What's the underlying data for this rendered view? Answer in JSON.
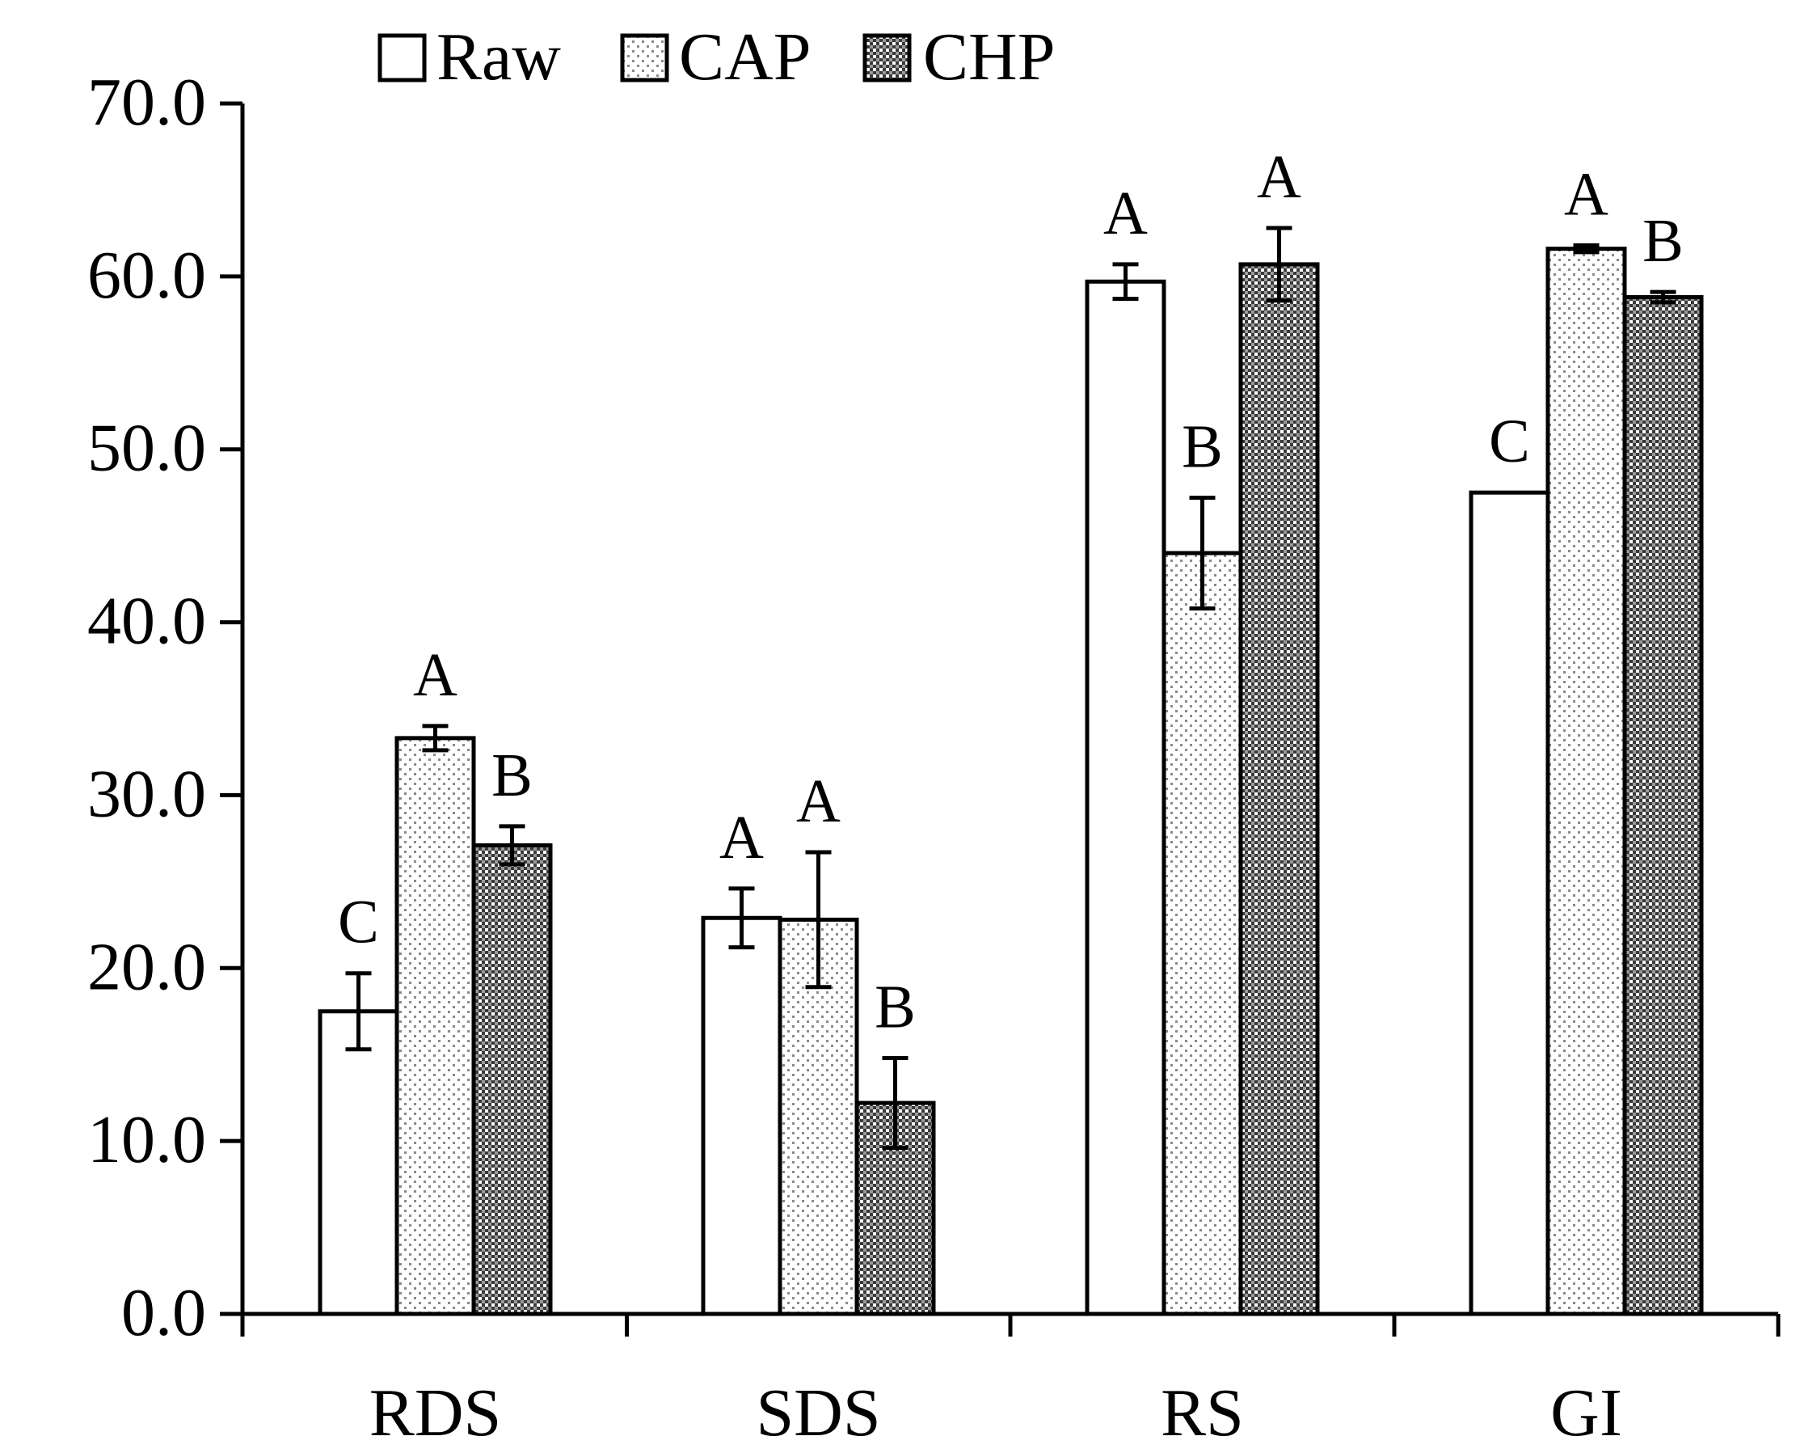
{
  "chart_data": {
    "type": "bar",
    "title": "",
    "xlabel": "",
    "ylabel": "",
    "ylim": [
      0,
      70
    ],
    "yticks": [
      "0.0",
      "10.0",
      "20.0",
      "30.0",
      "40.0",
      "50.0",
      "60.0",
      "70.0"
    ],
    "grid": false,
    "legend_position": "top-left",
    "categories": [
      "RDS",
      "SDS",
      "RS",
      "GI"
    ],
    "series": [
      {
        "name": "Raw",
        "pattern": "white",
        "values": [
          17.5,
          22.9,
          59.7,
          47.5
        ],
        "errors": [
          2.2,
          1.7,
          1.0,
          0
        ],
        "letters": [
          "C",
          "A",
          "A",
          "C"
        ]
      },
      {
        "name": "CAP",
        "pattern": "light-dots",
        "values": [
          33.3,
          22.8,
          44.0,
          61.6
        ],
        "errors": [
          0.7,
          3.9,
          3.2,
          0.2
        ],
        "letters": [
          "A",
          "A",
          "B",
          "A"
        ]
      },
      {
        "name": "CHP",
        "pattern": "dense-dots",
        "values": [
          27.1,
          12.2,
          60.7,
          58.8
        ],
        "errors": [
          1.1,
          2.6,
          2.1,
          0.3
        ],
        "letters": [
          "B",
          "B",
          "A",
          "B"
        ]
      }
    ]
  },
  "colors": {
    "stroke": "#000000",
    "background": "#ffffff",
    "dot_light": "#8a8a8a",
    "dot_dense": "#3a3a3a"
  }
}
